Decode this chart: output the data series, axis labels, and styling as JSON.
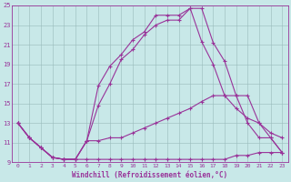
{
  "xlabel": "Windchill (Refroidissement éolien,°C)",
  "xlim": [
    -0.5,
    23.5
  ],
  "ylim": [
    9,
    25
  ],
  "yticks": [
    9,
    11,
    13,
    15,
    17,
    19,
    21,
    23,
    25
  ],
  "xticks": [
    0,
    1,
    2,
    3,
    4,
    5,
    6,
    7,
    8,
    9,
    10,
    11,
    12,
    13,
    14,
    15,
    16,
    17,
    18,
    19,
    20,
    21,
    22,
    23
  ],
  "bg_color": "#c8e8e8",
  "line_color": "#993399",
  "grid_color": "#99bbbb",
  "line1_x": [
    0,
    1,
    2,
    3,
    4,
    5,
    6,
    7,
    8,
    9,
    10,
    11,
    12,
    13,
    14,
    15,
    16,
    17,
    18,
    19,
    20,
    21,
    22,
    23
  ],
  "line1_y": [
    13.0,
    11.5,
    10.5,
    9.5,
    9.3,
    9.3,
    11.2,
    16.8,
    18.8,
    20.0,
    21.5,
    22.3,
    24.0,
    24.0,
    24.0,
    24.7,
    24.7,
    21.2,
    19.3,
    15.8,
    13.0,
    11.5,
    11.5,
    10.0
  ],
  "line2_x": [
    0,
    1,
    2,
    3,
    4,
    5,
    6,
    7,
    8,
    9,
    10,
    11,
    12,
    13,
    14,
    15,
    16,
    17,
    18,
    19,
    20,
    21,
    22,
    23
  ],
  "line2_y": [
    13.0,
    11.5,
    10.5,
    9.5,
    9.3,
    9.3,
    11.2,
    14.8,
    17.0,
    19.5,
    20.5,
    22.0,
    23.0,
    23.5,
    23.5,
    24.7,
    21.3,
    19.0,
    15.8,
    15.8,
    15.8,
    13.0,
    11.5,
    10.0
  ],
  "line3_x": [
    0,
    1,
    2,
    3,
    4,
    5,
    6,
    7,
    8,
    9,
    10,
    11,
    12,
    13,
    14,
    15,
    16,
    17,
    18,
    19,
    20,
    21,
    22,
    23
  ],
  "line3_y": [
    13.0,
    11.5,
    10.5,
    9.5,
    9.3,
    9.3,
    11.2,
    11.2,
    11.5,
    11.5,
    12.0,
    12.5,
    13.0,
    13.5,
    14.0,
    14.5,
    15.2,
    15.8,
    15.8,
    14.5,
    13.5,
    13.0,
    12.0,
    11.5
  ],
  "line4_x": [
    0,
    1,
    2,
    3,
    4,
    5,
    6,
    7,
    8,
    9,
    10,
    11,
    12,
    13,
    14,
    15,
    16,
    17,
    18,
    19,
    20,
    21,
    22,
    23
  ],
  "line4_y": [
    13.0,
    11.5,
    10.5,
    9.5,
    9.3,
    9.3,
    9.3,
    9.3,
    9.3,
    9.3,
    9.3,
    9.3,
    9.3,
    9.3,
    9.3,
    9.3,
    9.3,
    9.3,
    9.3,
    9.7,
    9.7,
    10.0,
    10.0,
    10.0
  ]
}
